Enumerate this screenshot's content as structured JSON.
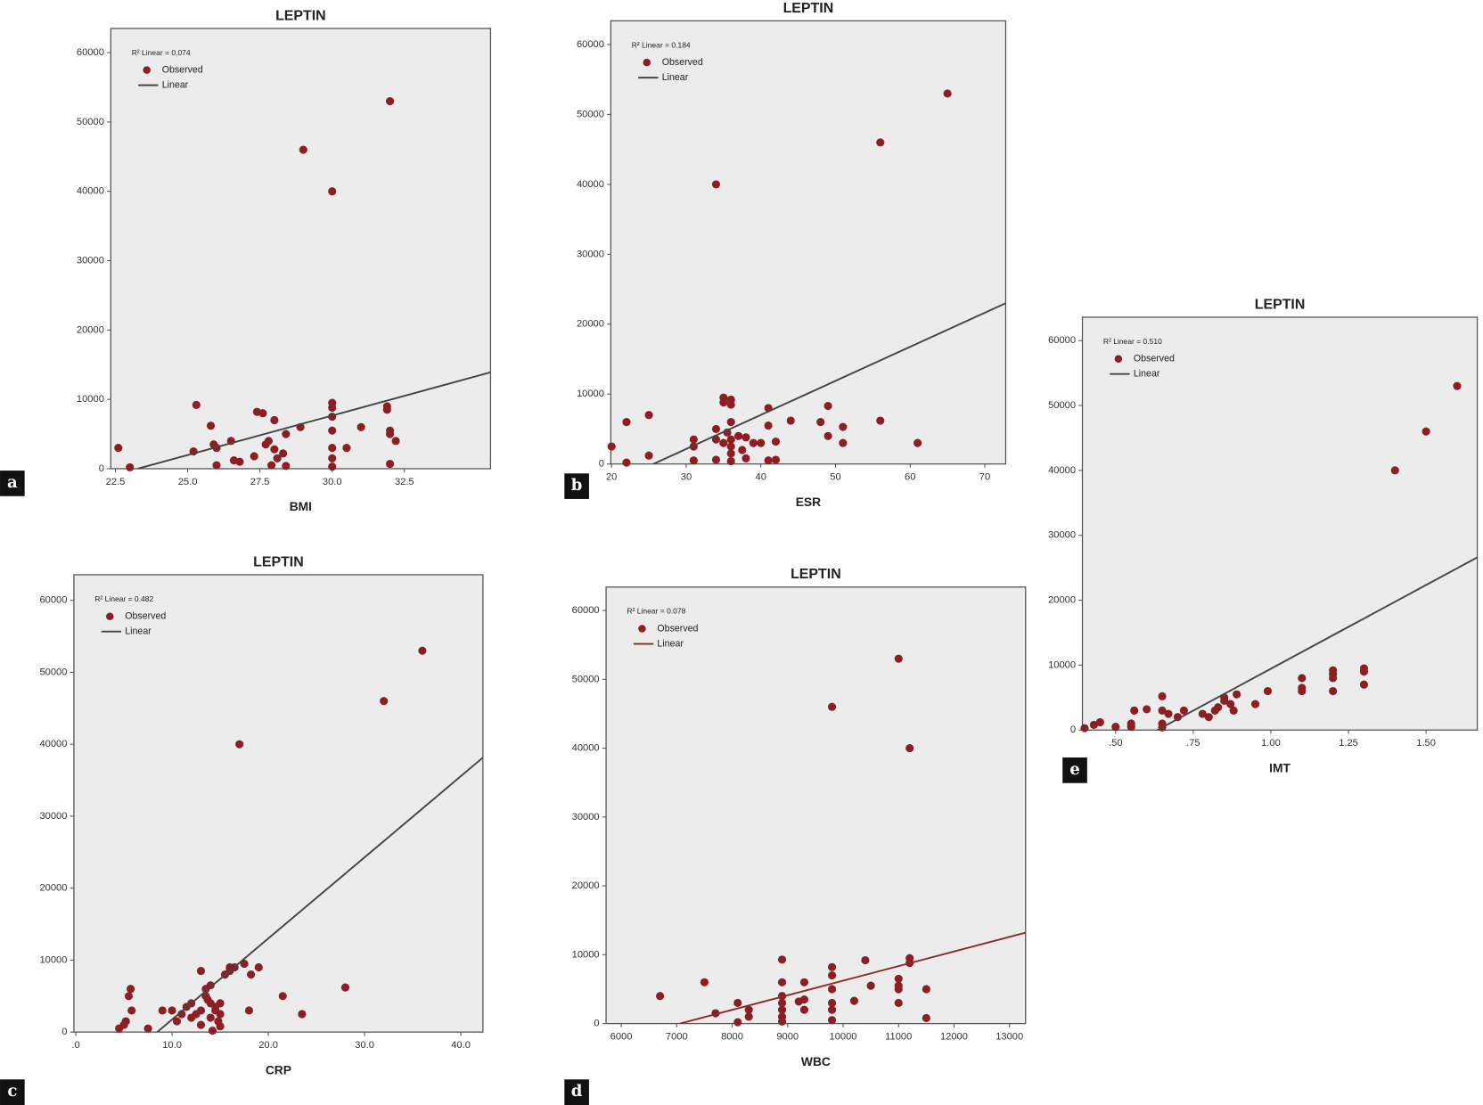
{
  "chart_data": [
    {
      "type": "scatter",
      "panel": "a",
      "title": "LEPTIN",
      "annotation": "R² Linear = 0.074",
      "xlabel": "BMI",
      "xlim": [
        22.34,
        35.48
      ],
      "ylim": [
        0,
        63500
      ],
      "xticks": [
        22.5,
        {
          "value": 25,
          "label": "25.0"
        },
        27.5,
        {
          "value": 30,
          "label": "30.0"
        },
        32.5
      ],
      "yticks": [
        0,
        10000,
        20000,
        30000,
        40000,
        50000,
        60000
      ],
      "series": [
        {
          "name": "Observed",
          "type": "scatter",
          "color": "#8b1f24",
          "x": [
            22.6,
            23,
            25.3,
            25.2,
            25.8,
            25.9,
            26,
            26,
            26.5,
            26.6,
            26.8,
            27.4,
            27.6,
            27.3,
            27.7,
            27.8,
            28,
            28,
            28.1,
            28.3,
            28.4,
            28.4,
            27.9,
            28.9,
            29,
            30,
            30,
            30,
            30,
            30,
            30,
            30,
            30,
            30.5,
            31,
            31.9,
            31.9,
            32,
            32,
            32.2,
            32,
            32
          ],
          "values": [
            3000,
            200,
            9200,
            2500,
            6200,
            3500,
            3000,
            500,
            4000,
            1200,
            1000,
            8200,
            8000,
            1800,
            3500,
            4000,
            2800,
            7000,
            1500,
            2200,
            5000,
            400,
            500,
            6000,
            46000,
            40000,
            9500,
            8800,
            7500,
            5500,
            3000,
            1500,
            300,
            3000,
            6000,
            9000,
            8500,
            5500,
            5000,
            4000,
            700,
            53000
          ]
        },
        {
          "name": "Linear",
          "type": "line",
          "color": "#444444",
          "x": [
            23.27,
            35.48
          ],
          "values": [
            0,
            13900
          ]
        }
      ]
    },
    {
      "type": "scatter",
      "panel": "b",
      "title": "LEPTIN",
      "annotation": "R² Linear = 0.184",
      "xlabel": "ESR",
      "xlim": [
        19.9,
        72.8
      ],
      "ylim": [
        0,
        63400
      ],
      "xticks": [
        20,
        30,
        40,
        50,
        60,
        70
      ],
      "yticks": [
        0,
        10000,
        20000,
        30000,
        40000,
        50000,
        60000
      ],
      "series": [
        {
          "name": "Observed",
          "type": "scatter",
          "color": "#8b1f24",
          "x": [
            20,
            22,
            22,
            25,
            25,
            31,
            31,
            31,
            34,
            34,
            34,
            34,
            35,
            35,
            35,
            35.5,
            36,
            36,
            36,
            36,
            36,
            36,
            36,
            37,
            37.5,
            38,
            38,
            39,
            40,
            41,
            41,
            41,
            42,
            42,
            44,
            48,
            49,
            49,
            51,
            51,
            56,
            56,
            61,
            65
          ],
          "values": [
            2500,
            6000,
            200,
            7000,
            1200,
            3500,
            2500,
            500,
            40000,
            5000,
            3500,
            600,
            9500,
            8800,
            3000,
            4500,
            9200,
            8500,
            6000,
            3500,
            2500,
            1500,
            400,
            4000,
            2000,
            3800,
            800,
            3000,
            3000,
            8000,
            5500,
            500,
            3200,
            600,
            6200,
            6000,
            8300,
            4000,
            5300,
            3000,
            6200,
            46000,
            3000,
            53000
          ]
        },
        {
          "name": "Linear",
          "type": "line",
          "color": "#444444",
          "x": [
            25.6,
            72.8
          ],
          "values": [
            0,
            23000
          ]
        }
      ]
    },
    {
      "type": "scatter",
      "panel": "c",
      "title": "LEPTIN",
      "annotation": "R² Linear = 0.482",
      "xlabel": "CRP",
      "xlim": [
        -0.2,
        42.3
      ],
      "ylim": [
        0,
        63550
      ],
      "xticks": [
        {
          "value": 0,
          "label": ".0"
        },
        {
          "value": 10,
          "label": "10.0"
        },
        {
          "value": 20,
          "label": "20.0"
        },
        {
          "value": 30,
          "label": "30.0"
        },
        {
          "value": 40,
          "label": "40.0"
        }
      ],
      "yticks": [
        0,
        10000,
        20000,
        30000,
        40000,
        50000,
        60000
      ],
      "series": [
        {
          "name": "Observed",
          "type": "scatter",
          "color": "#8b1f24",
          "x": [
            4.5,
            5,
            5.2,
            5.5,
            5.7,
            5.8,
            7.5,
            9,
            10,
            10.5,
            11,
            11.5,
            12,
            12,
            12.5,
            13,
            13,
            13,
            13.5,
            13.5,
            13.7,
            14,
            14,
            14,
            14.2,
            14.5,
            14.5,
            14.8,
            15,
            15,
            15,
            15.5,
            16,
            16,
            16.5,
            17,
            17.5,
            18,
            18.2,
            19,
            21.5,
            23.5,
            28,
            32,
            36
          ],
          "values": [
            500,
            1000,
            1500,
            5000,
            6000,
            3000,
            500,
            3000,
            3000,
            1500,
            2500,
            3500,
            4000,
            2000,
            2500,
            8500,
            3000,
            1000,
            6000,
            5000,
            4500,
            6500,
            4000,
            2000,
            200,
            3500,
            3000,
            1500,
            4000,
            2500,
            800,
            8000,
            9000,
            8500,
            9000,
            40000,
            9500,
            3000,
            8000,
            9000,
            5000,
            2500,
            6200,
            46000,
            53000
          ]
        },
        {
          "name": "Linear",
          "type": "line",
          "color": "#444444",
          "x": [
            8.45,
            42.3
          ],
          "values": [
            0,
            38150
          ]
        }
      ]
    },
    {
      "type": "scatter",
      "panel": "d",
      "title": "LEPTIN",
      "annotation": "R² Linear = 0.078",
      "xlabel": "WBC",
      "xlim": [
        5727,
        13290
      ],
      "ylim": [
        0,
        63400
      ],
      "xticks": [
        6000,
        7000,
        8000,
        9000,
        10000,
        11000,
        12000,
        13000
      ],
      "yticks": [
        0,
        10000,
        20000,
        30000,
        40000,
        50000,
        60000
      ],
      "series": [
        {
          "name": "Observed",
          "type": "scatter",
          "color": "#8b1f24",
          "x": [
            6700,
            7500,
            7700,
            8100,
            8100,
            8300,
            8300,
            8900,
            8900,
            8900,
            8900,
            8900,
            8900,
            8900,
            9200,
            9300,
            9300,
            9300,
            9800,
            9800,
            9800,
            9800,
            9800,
            9800,
            9800,
            10200,
            10400,
            10500,
            11000,
            11000,
            11000,
            11000,
            11000,
            11200,
            11200,
            11200,
            11500,
            11500
          ],
          "values": [
            4000,
            6000,
            1500,
            3000,
            200,
            2000,
            1000,
            9300,
            6000,
            4000,
            3000,
            2000,
            1000,
            300,
            3200,
            6000,
            3500,
            2000,
            46000,
            8200,
            7000,
            5000,
            3000,
            2000,
            500,
            3300,
            9200,
            5500,
            53000,
            6500,
            5500,
            5000,
            3000,
            40000,
            9500,
            8800,
            5000,
            800
          ]
        },
        {
          "name": "Linear",
          "type": "line",
          "color": "#8b2a2a",
          "x": [
            7058,
            13290
          ],
          "values": [
            0,
            13200
          ]
        }
      ]
    },
    {
      "type": "scatter",
      "panel": "e",
      "title": "LEPTIN",
      "annotation": "R² Linear = 0.510",
      "xlabel": "IMT",
      "xlim": [
        0.393,
        1.665
      ],
      "ylim": [
        0,
        63600
      ],
      "xticks": [
        {
          "value": 0.5,
          "label": ".50"
        },
        {
          "value": 0.75,
          "label": ".75"
        },
        {
          "value": 1,
          "label": "1.00"
        },
        {
          "value": 1.25,
          "label": "1.25"
        },
        {
          "value": 1.5,
          "label": "1.50"
        }
      ],
      "yticks": [
        0,
        10000,
        20000,
        30000,
        40000,
        50000,
        60000
      ],
      "series": [
        {
          "name": "Observed",
          "type": "scatter",
          "color": "#8b1f24",
          "x": [
            0.4,
            0.43,
            0.45,
            0.5,
            0.55,
            0.55,
            0.56,
            0.6,
            0.65,
            0.65,
            0.65,
            0.65,
            0.67,
            0.7,
            0.72,
            0.78,
            0.8,
            0.82,
            0.83,
            0.85,
            0.85,
            0.87,
            0.88,
            0.89,
            0.95,
            0.99,
            1.1,
            1.1,
            1.1,
            1.2,
            1.2,
            1.2,
            1.2,
            1.3,
            1.3,
            1.3,
            1.4,
            1.5,
            1.6
          ],
          "values": [
            300,
            800,
            1200,
            500,
            1000,
            500,
            3000,
            3200,
            5200,
            3000,
            1000,
            400,
            2500,
            2000,
            3000,
            2500,
            2000,
            3000,
            3500,
            5000,
            4500,
            4000,
            3000,
            5500,
            4000,
            6000,
            8000,
            6500,
            6000,
            9200,
            8600,
            8000,
            6000,
            9500,
            9000,
            7000,
            40000,
            46000,
            53000
          ]
        },
        {
          "name": "Linear",
          "type": "line",
          "color": "#444444",
          "x": [
            0.634,
            1.665
          ],
          "values": [
            0,
            26600
          ]
        }
      ]
    }
  ]
}
